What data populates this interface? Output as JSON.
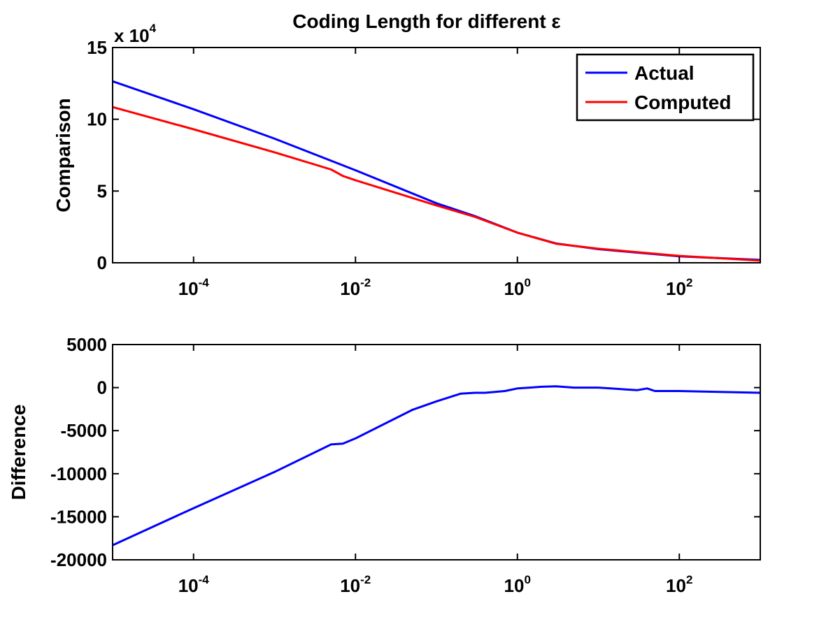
{
  "figure": {
    "title": "Coding Length for different ε"
  },
  "chart_data": [
    {
      "type": "line",
      "title": "Coding Length for different ε",
      "xlabel": "",
      "ylabel": "Comparison",
      "xscale": "log",
      "xlim": [
        1e-05,
        1000
      ],
      "ylim": [
        0,
        150000
      ],
      "exponent_label": "x 10",
      "exponent_power": "4",
      "x_ticks": [
        0.0001,
        0.01,
        1,
        100
      ],
      "x_tick_labels": [
        {
          "base": "10",
          "exp": "-4"
        },
        {
          "base": "10",
          "exp": "-2"
        },
        {
          "base": "10",
          "exp": "0"
        },
        {
          "base": "10",
          "exp": "2"
        }
      ],
      "y_ticks": [
        0,
        50000,
        100000,
        150000
      ],
      "y_tick_labels": [
        "0",
        "5",
        "10",
        "15"
      ],
      "legend": "top-right",
      "grid": false,
      "series": [
        {
          "name": "Actual",
          "color": "#0000ff",
          "x": [
            1e-05,
            0.0001,
            0.001,
            0.01,
            0.1,
            0.3,
            1,
            3,
            10,
            100,
            1000
          ],
          "y": [
            126500,
            107000,
            86500,
            64500,
            41500,
            32500,
            21000,
            13500,
            9500,
            4500,
            2000
          ]
        },
        {
          "name": "Computed",
          "color": "#ff0000",
          "x": [
            1e-05,
            0.0001,
            0.001,
            0.005,
            0.007,
            0.01,
            0.1,
            0.3,
            1,
            3,
            10,
            100,
            1000
          ],
          "y": [
            108500,
            93000,
            77000,
            65000,
            60500,
            57500,
            40000,
            32000,
            21000,
            13300,
            9800,
            4800,
            1500
          ]
        }
      ]
    },
    {
      "type": "line",
      "xlabel": "",
      "ylabel": "Difference",
      "xscale": "log",
      "xlim": [
        1e-05,
        1000
      ],
      "ylim": [
        -20000,
        5000
      ],
      "x_ticks": [
        0.0001,
        0.01,
        1,
        100
      ],
      "x_tick_labels": [
        {
          "base": "10",
          "exp": "-4"
        },
        {
          "base": "10",
          "exp": "-2"
        },
        {
          "base": "10",
          "exp": "0"
        },
        {
          "base": "10",
          "exp": "2"
        }
      ],
      "y_ticks": [
        -20000,
        -15000,
        -10000,
        -5000,
        0,
        5000
      ],
      "y_tick_labels": [
        "-20000",
        "-15000",
        "-10000",
        "-5000",
        "0",
        "5000"
      ],
      "grid": false,
      "series": [
        {
          "color": "#0000ff",
          "x": [
            1e-05,
            0.0001,
            0.001,
            0.005,
            0.007,
            0.01,
            0.05,
            0.1,
            0.2,
            0.3,
            0.4,
            0.7,
            1,
            2,
            3,
            5,
            10,
            30,
            40,
            50,
            100,
            1000
          ],
          "y": [
            -18300,
            -14000,
            -9800,
            -6600,
            -6500,
            -5900,
            -2600,
            -1600,
            -700,
            -600,
            -600,
            -400,
            -100,
            100,
            150,
            0,
            0,
            -300,
            -100,
            -400,
            -400,
            -600
          ]
        }
      ]
    }
  ]
}
